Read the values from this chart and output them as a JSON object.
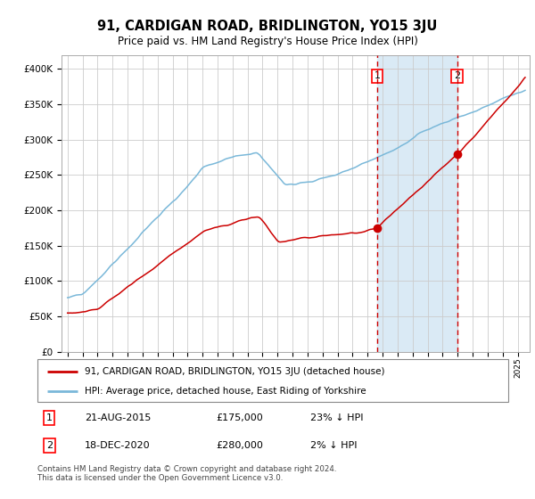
{
  "title": "91, CARDIGAN ROAD, BRIDLINGTON, YO15 3JU",
  "subtitle": "Price paid vs. HM Land Registry's House Price Index (HPI)",
  "title_fontsize": 11,
  "subtitle_fontsize": 9,
  "ylim": [
    0,
    420000
  ],
  "yticks": [
    0,
    50000,
    100000,
    150000,
    200000,
    250000,
    300000,
    350000,
    400000
  ],
  "ytick_labels": [
    "£0",
    "£50K",
    "£100K",
    "£150K",
    "£200K",
    "£250K",
    "£300K",
    "£350K",
    "£400K"
  ],
  "hpi_color": "#7ab8d9",
  "price_color": "#cc0000",
  "sale1_date_num": 2015.643,
  "sale1_price": 175000,
  "sale1_label": "1",
  "sale2_date_num": 2020.963,
  "sale2_price": 280000,
  "sale2_label": "2",
  "legend_line1": "91, CARDIGAN ROAD, BRIDLINGTON, YO15 3JU (detached house)",
  "legend_line2": "HPI: Average price, detached house, East Riding of Yorkshire",
  "footnote": "Contains HM Land Registry data © Crown copyright and database right 2024.\nThis data is licensed under the Open Government Licence v3.0.",
  "plot_bg_color": "#ffffff",
  "grid_color": "#cccccc",
  "shaded_region_color": "#daeaf5",
  "xlim_left": 1994.6,
  "xlim_right": 2025.8,
  "label1_date": "21-AUG-2015",
  "label1_price": "£175,000",
  "label1_hpi": "23% ↓ HPI",
  "label2_date": "18-DEC-2020",
  "label2_price": "£280,000",
  "label2_hpi": "2% ↓ HPI"
}
